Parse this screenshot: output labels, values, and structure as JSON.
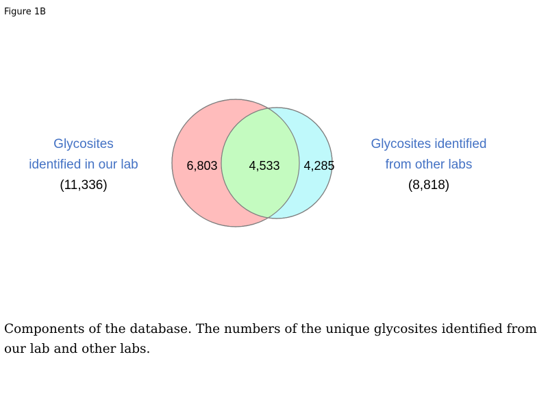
{
  "figure_label": "Figure 1B",
  "left_set": {
    "title_line1": "Glycosites",
    "title_line2": "identified in our lab",
    "total": "(11,336)",
    "fill_color": "#ffbcbc",
    "label_color": "#4472c4"
  },
  "right_set": {
    "title_line1": "Glycosites identified",
    "title_line2": "from other labs",
    "total": "(8,818)",
    "fill_color": "#bff9fb",
    "label_color": "#4472c4"
  },
  "regions": {
    "left_only": "6,803",
    "overlap": "4,533",
    "right_only": "4,285",
    "overlap_color": "#c4fbc0"
  },
  "caption": "Components of the database. The numbers of the unique glycosites identified from our lab and other labs."
}
